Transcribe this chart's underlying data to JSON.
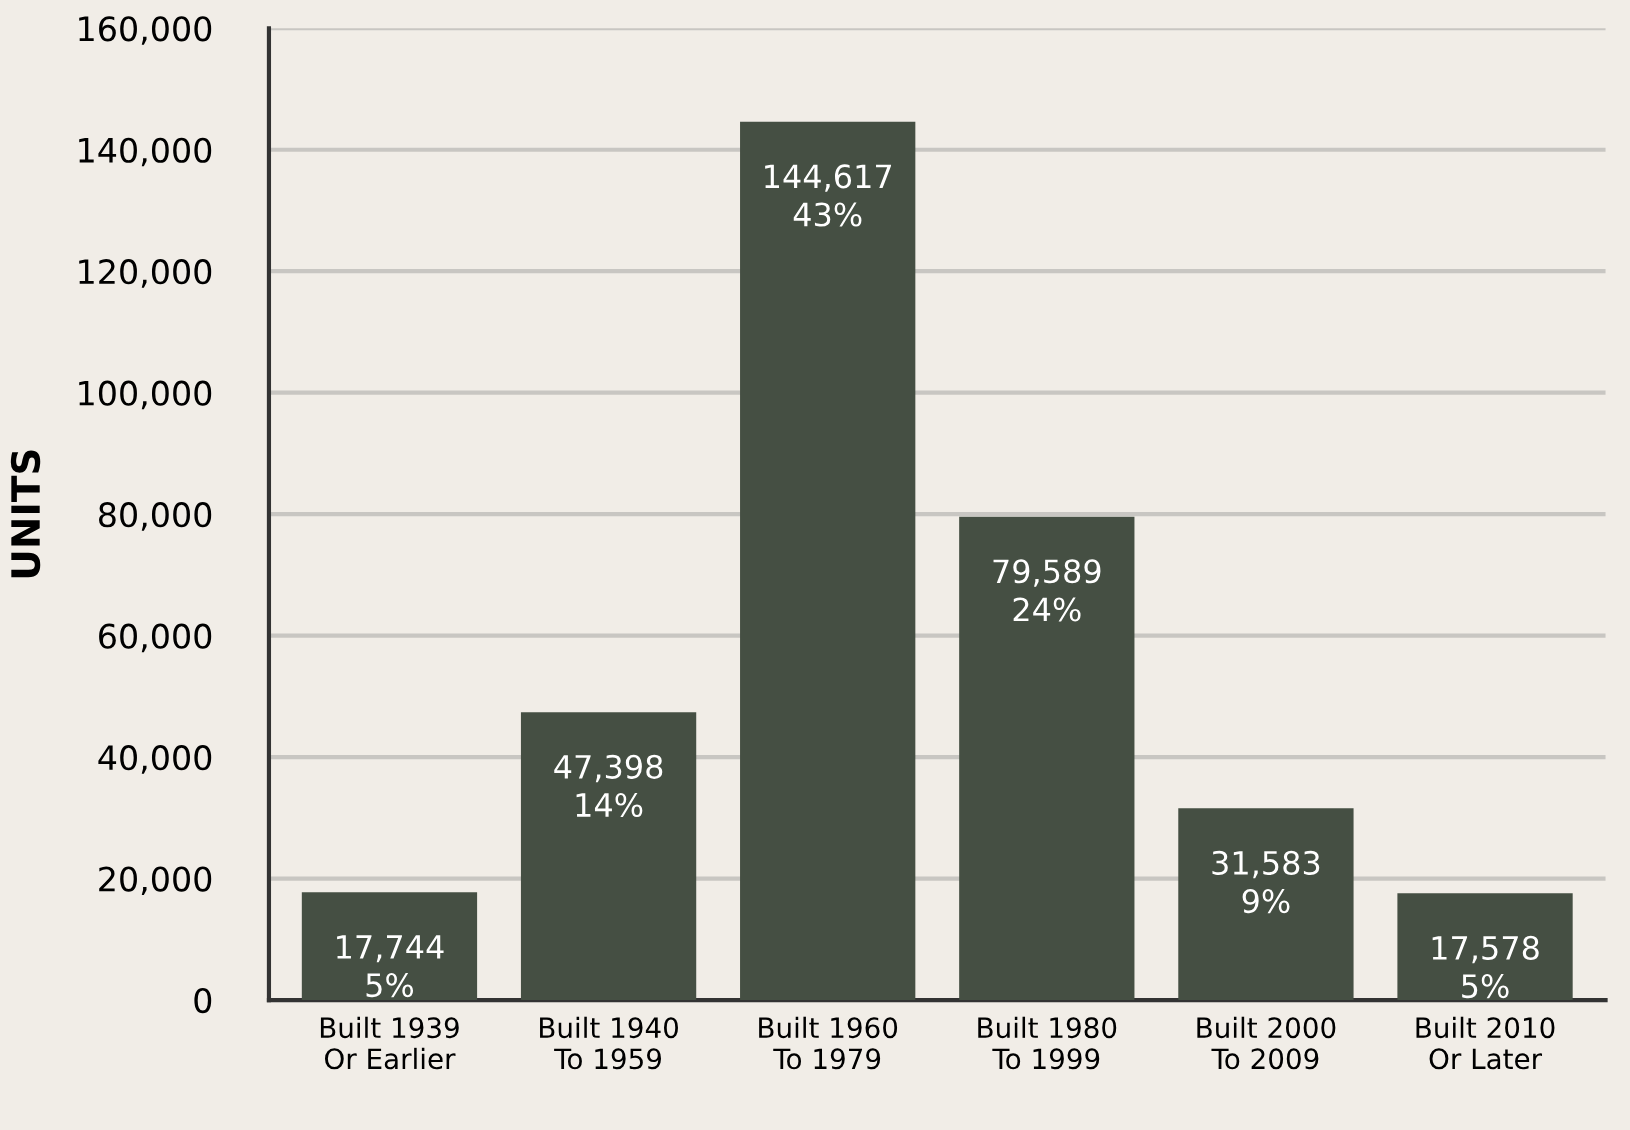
{
  "chart_data": {
    "type": "bar",
    "ylabel": "UNITS",
    "categories": [
      "Built 1939\nOr Earlier",
      "Built 1940\nTo 1959",
      "Built 1960\nTo 1979",
      "Built 1980\nTo 1999",
      "Built 2000\nTo 2009",
      "Built 2010\nOr Later"
    ],
    "values": [
      17744,
      47398,
      144617,
      79589,
      31583,
      17578
    ],
    "value_labels": [
      "17,744\n5%",
      "47,398\n14%",
      "144,617\n43%",
      "79,589\n24%",
      "31,583\n9%",
      "17,578\n5%"
    ],
    "color": "#454f43",
    "ylim": [
      0,
      160000
    ],
    "yticks": [
      0,
      {
        "value": 20000,
        "label": "20,000"
      },
      {
        "value": 40000,
        "label": "40,000"
      },
      {
        "value": 60000,
        "label": "60,000"
      },
      {
        "value": 80000,
        "label": "80,000"
      },
      {
        "value": 100000,
        "label": "100,000"
      },
      {
        "value": 120000,
        "label": "120,000"
      },
      {
        "value": 140000,
        "label": "140,000"
      },
      {
        "value": 160000,
        "label": "160,000"
      }
    ],
    "grid": "y",
    "legend": false
  }
}
